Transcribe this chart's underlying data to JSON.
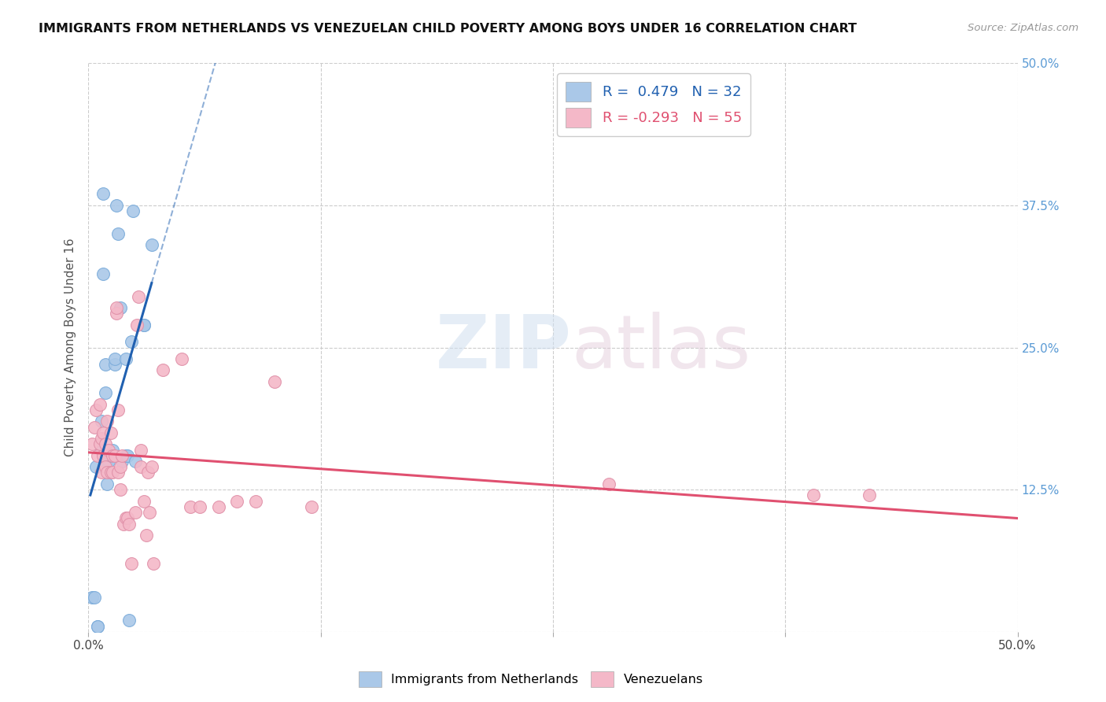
{
  "title": "IMMIGRANTS FROM NETHERLANDS VS VENEZUELAN CHILD POVERTY AMONG BOYS UNDER 16 CORRELATION CHART",
  "source": "Source: ZipAtlas.com",
  "ylabel": "Child Poverty Among Boys Under 16",
  "xlim": [
    0.0,
    0.5
  ],
  "ylim": [
    0.0,
    0.5
  ],
  "color_blue": "#aac8e8",
  "color_pink": "#f4b8c8",
  "trend_blue": "#2060b0",
  "trend_pink": "#e05070",
  "watermark_zip": "ZIP",
  "watermark_atlas": "atlas",
  "blue_x": [
    0.002,
    0.003,
    0.004,
    0.005,
    0.005,
    0.007,
    0.007,
    0.008,
    0.008,
    0.009,
    0.009,
    0.01,
    0.01,
    0.011,
    0.012,
    0.013,
    0.014,
    0.014,
    0.015,
    0.016,
    0.017,
    0.018,
    0.02,
    0.02,
    0.021,
    0.022,
    0.023,
    0.024,
    0.025,
    0.03,
    0.03,
    0.034
  ],
  "blue_y": [
    0.03,
    0.03,
    0.145,
    0.005,
    0.005,
    0.16,
    0.185,
    0.315,
    0.385,
    0.21,
    0.235,
    0.13,
    0.15,
    0.15,
    0.155,
    0.16,
    0.235,
    0.24,
    0.375,
    0.35,
    0.285,
    0.15,
    0.155,
    0.24,
    0.155,
    0.01,
    0.255,
    0.37,
    0.15,
    0.27,
    0.27,
    0.34
  ],
  "pink_x": [
    0.002,
    0.003,
    0.004,
    0.005,
    0.006,
    0.006,
    0.007,
    0.007,
    0.008,
    0.008,
    0.009,
    0.009,
    0.01,
    0.01,
    0.011,
    0.012,
    0.012,
    0.013,
    0.013,
    0.014,
    0.015,
    0.015,
    0.016,
    0.016,
    0.017,
    0.017,
    0.018,
    0.019,
    0.02,
    0.021,
    0.022,
    0.023,
    0.025,
    0.026,
    0.027,
    0.028,
    0.028,
    0.03,
    0.031,
    0.032,
    0.033,
    0.034,
    0.035,
    0.04,
    0.05,
    0.055,
    0.06,
    0.07,
    0.08,
    0.09,
    0.1,
    0.12,
    0.28,
    0.39,
    0.42
  ],
  "pink_y": [
    0.165,
    0.18,
    0.195,
    0.155,
    0.165,
    0.2,
    0.14,
    0.17,
    0.155,
    0.175,
    0.145,
    0.165,
    0.14,
    0.185,
    0.16,
    0.14,
    0.175,
    0.14,
    0.155,
    0.155,
    0.28,
    0.285,
    0.14,
    0.195,
    0.125,
    0.145,
    0.155,
    0.095,
    0.1,
    0.1,
    0.095,
    0.06,
    0.105,
    0.27,
    0.295,
    0.145,
    0.16,
    0.115,
    0.085,
    0.14,
    0.105,
    0.145,
    0.06,
    0.23,
    0.24,
    0.11,
    0.11,
    0.11,
    0.115,
    0.115,
    0.22,
    0.11,
    0.13,
    0.12,
    0.12
  ]
}
